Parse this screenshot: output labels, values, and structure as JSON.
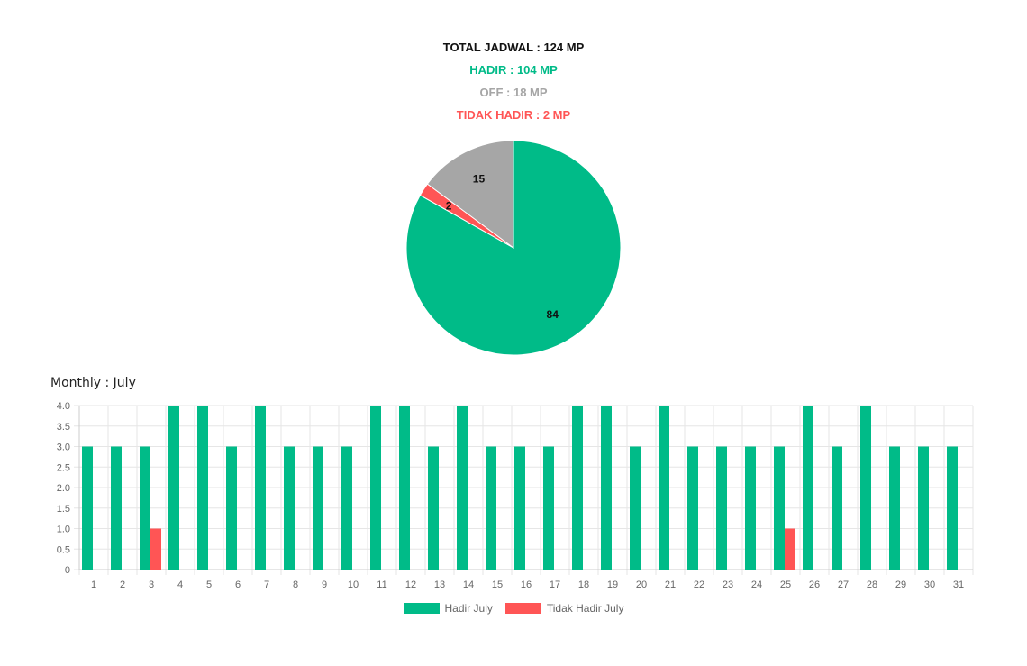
{
  "summary": {
    "total": "TOTAL JADWAL : 124 MP",
    "hadir": "HADIR : 104 MP",
    "off": "OFF : 18 MP",
    "tidak_hadir": "TIDAK HADIR : 2 MP"
  },
  "colors": {
    "hadir": "#00bb88",
    "off": "#a6a6a6",
    "tidak_hadir": "#ff5555"
  },
  "monthly_title": "Monthly : July",
  "chart_data": [
    {
      "type": "pie",
      "slices": [
        {
          "label": "Hadir",
          "value": 84,
          "color": "#00bb88"
        },
        {
          "label": "Tidak Hadir",
          "value": 2,
          "color": "#ff5555"
        },
        {
          "label": "Off",
          "value": 15,
          "color": "#a6a6a6"
        }
      ],
      "data_labels": true
    },
    {
      "type": "bar",
      "title": "Monthly : July",
      "categories": [
        "1",
        "2",
        "3",
        "4",
        "5",
        "6",
        "7",
        "8",
        "9",
        "10",
        "11",
        "12",
        "13",
        "14",
        "15",
        "16",
        "17",
        "18",
        "19",
        "20",
        "21",
        "22",
        "23",
        "24",
        "25",
        "26",
        "27",
        "28",
        "29",
        "30",
        "31"
      ],
      "series": [
        {
          "name": "Hadir July",
          "color": "#00bb88",
          "values": [
            3,
            3,
            3,
            4,
            4,
            3,
            4,
            3,
            3,
            3,
            4,
            4,
            3,
            4,
            3,
            3,
            3,
            4,
            4,
            3,
            4,
            3,
            3,
            3,
            3,
            4,
            3,
            4,
            3,
            3,
            3
          ]
        },
        {
          "name": "Tidak Hadir July",
          "color": "#ff5555",
          "values": [
            0,
            0,
            1,
            0,
            0,
            0,
            0,
            0,
            0,
            0,
            0,
            0,
            0,
            0,
            0,
            0,
            0,
            0,
            0,
            0,
            0,
            0,
            0,
            0,
            1,
            0,
            0,
            0,
            0,
            0,
            0
          ]
        }
      ],
      "ylim": [
        0,
        4
      ],
      "yticks": [
        "0",
        "0.5",
        "1.0",
        "1.5",
        "2.0",
        "2.5",
        "3.0",
        "3.5",
        "4.0"
      ],
      "grid": true,
      "legend": "bottom"
    }
  ]
}
